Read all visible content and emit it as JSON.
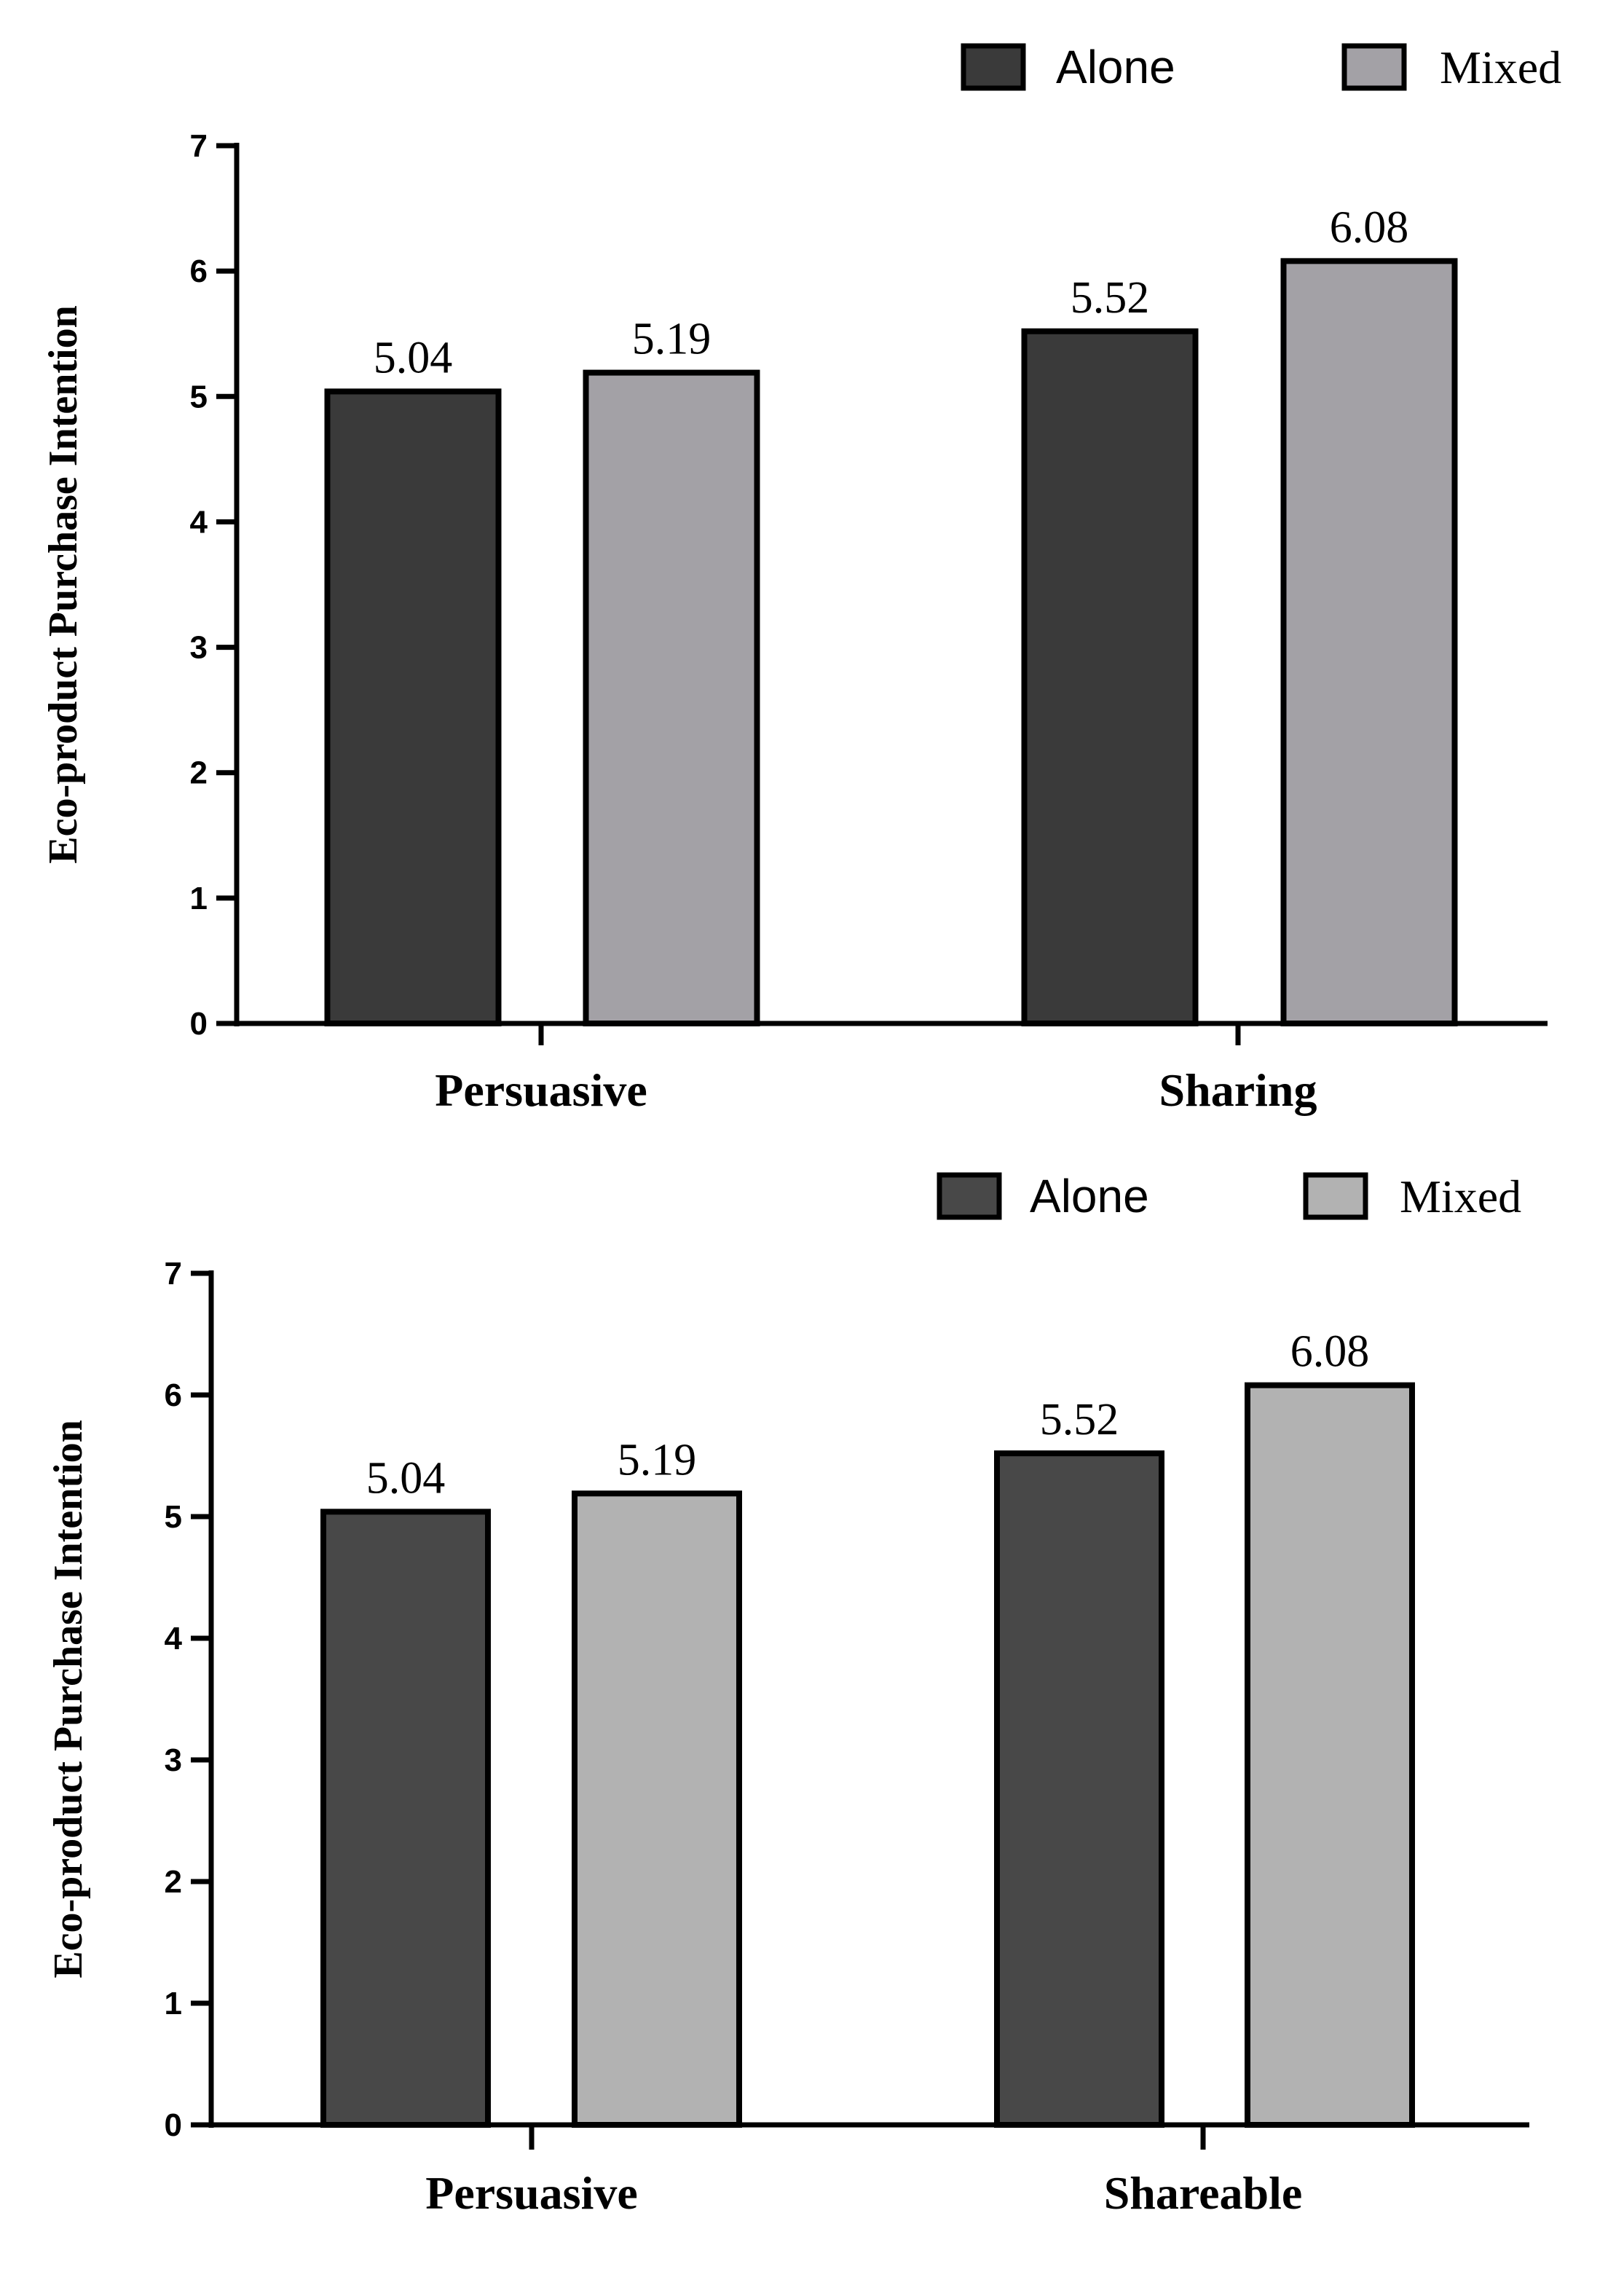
{
  "chart_data": [
    {
      "type": "bar",
      "title": "",
      "xlabel": "",
      "ylabel": "Eco-product Purchase Intention",
      "ylim": [
        0,
        7
      ],
      "yticks": [
        "0",
        "1",
        "2",
        "3",
        "4",
        "5",
        "6",
        "7"
      ],
      "categories": [
        "Persuasive",
        "Sharing"
      ],
      "series": [
        {
          "name": "Alone",
          "values": [
            5.04,
            5.52
          ],
          "labels": [
            "5.04",
            "5.52"
          ],
          "color": "#3a3a3a"
        },
        {
          "name": "Mixed",
          "values": [
            5.19,
            6.08
          ],
          "labels": [
            "5.19",
            "6.08"
          ],
          "color": "#a3a1a6"
        }
      ],
      "legend": "top-right"
    },
    {
      "type": "bar",
      "title": "",
      "xlabel": "",
      "ylabel": "Eco-product Purchase Intention",
      "ylim": [
        0,
        7
      ],
      "yticks": [
        "0",
        "1",
        "2",
        "3",
        "4",
        "5",
        "6",
        "7"
      ],
      "categories": [
        "Persuasive",
        "Shareable"
      ],
      "series": [
        {
          "name": "Alone",
          "values": [
            5.04,
            5.52
          ],
          "labels": [
            "5.04",
            "5.52"
          ],
          "color": "#484848"
        },
        {
          "name": "Mixed",
          "values": [
            5.19,
            6.08
          ],
          "labels": [
            "5.19",
            "6.08"
          ],
          "color": "#b2b2b2"
        }
      ],
      "legend": "top-right"
    }
  ]
}
